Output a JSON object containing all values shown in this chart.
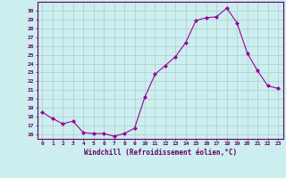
{
  "x": [
    0,
    1,
    2,
    3,
    4,
    5,
    6,
    7,
    8,
    9,
    10,
    11,
    12,
    13,
    14,
    15,
    16,
    17,
    18,
    19,
    20,
    21,
    22,
    23
  ],
  "y": [
    18.5,
    17.8,
    17.2,
    17.5,
    16.2,
    16.1,
    16.1,
    15.8,
    16.1,
    16.7,
    20.2,
    22.8,
    23.8,
    24.8,
    26.4,
    28.9,
    29.2,
    29.3,
    30.3,
    28.6,
    25.2,
    23.2,
    21.5,
    21.2
  ],
  "line_color": "#990099",
  "marker": "D",
  "marker_size": 2,
  "bg_color": "#cceeee",
  "grid_color": "#aacccc",
  "xlabel": "Windchill (Refroidissement éolien,°C)",
  "ylim": [
    15.5,
    31.0
  ],
  "ytick_labels": [
    "16",
    "17",
    "18",
    "19",
    "20",
    "21",
    "22",
    "23",
    "24",
    "25",
    "26",
    "27",
    "28",
    "29",
    "30"
  ],
  "ytick_vals": [
    16,
    17,
    18,
    19,
    20,
    21,
    22,
    23,
    24,
    25,
    26,
    27,
    28,
    29,
    30
  ],
  "xtick_vals": [
    0,
    1,
    2,
    3,
    4,
    5,
    6,
    7,
    8,
    9,
    10,
    11,
    12,
    13,
    14,
    15,
    16,
    17,
    18,
    19,
    20,
    21,
    22,
    23
  ],
  "xtick_labels": [
    "0",
    "1",
    "2",
    "3",
    "4",
    "5",
    "6",
    "7",
    "8",
    "9",
    "10",
    "11",
    "12",
    "13",
    "14",
    "15",
    "16",
    "17",
    "18",
    "19",
    "20",
    "21",
    "22",
    "23"
  ],
  "tick_color": "#660066",
  "label_color": "#660066",
  "spine_color": "#660066"
}
